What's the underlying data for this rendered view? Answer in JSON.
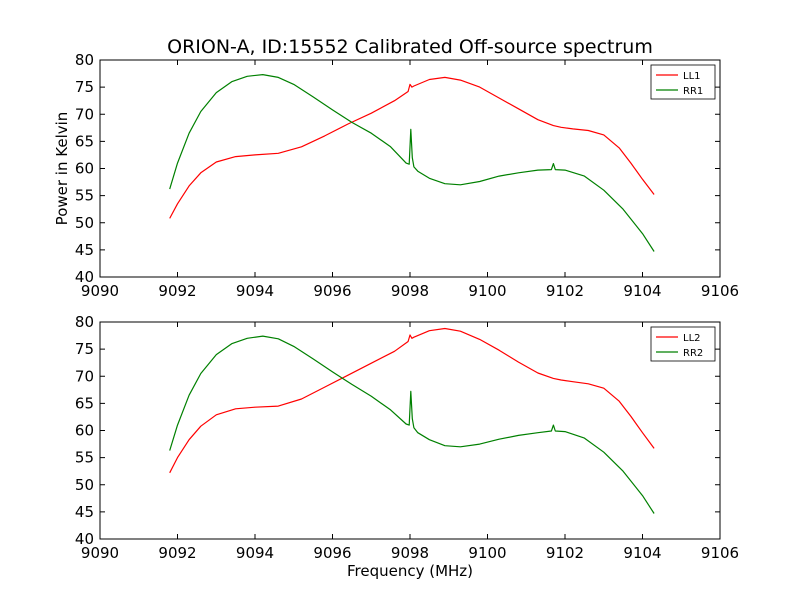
{
  "figure": {
    "title": "ORION-A, ID:15552 Calibrated Off-source spectrum"
  },
  "chart_data": [
    {
      "type": "line",
      "xlabel": "",
      "ylabel": "Power in Kelvin",
      "xlim": [
        9090,
        9106
      ],
      "ylim": [
        40,
        80
      ],
      "xticks": [
        9090,
        9092,
        9094,
        9096,
        9098,
        9100,
        9102,
        9104,
        9106
      ],
      "yticks": [
        40,
        45,
        50,
        55,
        60,
        65,
        70,
        75,
        80
      ],
      "grid": false,
      "legend_position": "top-right",
      "series": [
        {
          "name": "LL1",
          "color": "#ff0000",
          "x": [
            9091.8,
            9092.0,
            9092.3,
            9092.6,
            9093.0,
            9093.5,
            9094.0,
            9094.6,
            9095.2,
            9095.8,
            9096.4,
            9097.0,
            9097.6,
            9097.95,
            9098.0,
            9098.05,
            9098.1,
            9098.5,
            9098.9,
            9099.3,
            9099.8,
            9100.3,
            9100.8,
            9101.3,
            9101.7,
            9101.9,
            9102.2,
            9102.6,
            9103.0,
            9103.4,
            9103.7,
            9104.0,
            9104.3
          ],
          "y": [
            50.8,
            53.5,
            56.8,
            59.2,
            61.2,
            62.2,
            62.5,
            62.8,
            64.0,
            66.0,
            68.2,
            70.2,
            72.5,
            74.2,
            75.5,
            75.0,
            75.2,
            76.4,
            76.8,
            76.3,
            75.0,
            73.0,
            71.0,
            69.0,
            67.9,
            67.6,
            67.3,
            67.0,
            66.2,
            63.8,
            61.0,
            58.0,
            55.2
          ]
        },
        {
          "name": "RR1",
          "color": "#008000",
          "x": [
            9091.8,
            9092.0,
            9092.3,
            9092.6,
            9093.0,
            9093.4,
            9093.8,
            9094.2,
            9094.6,
            9095.0,
            9095.5,
            9096.0,
            9096.5,
            9097.0,
            9097.5,
            9097.9,
            9097.98,
            9098.02,
            9098.06,
            9098.1,
            9098.2,
            9098.5,
            9098.9,
            9099.3,
            9099.8,
            9100.3,
            9100.8,
            9101.3,
            9101.65,
            9101.7,
            9101.75,
            9102.0,
            9102.5,
            9103.0,
            9103.5,
            9104.0,
            9104.3
          ],
          "y": [
            56.2,
            61.0,
            66.5,
            70.5,
            74.0,
            76.0,
            77.0,
            77.3,
            76.8,
            75.5,
            73.2,
            70.8,
            68.5,
            66.5,
            64.0,
            61.0,
            60.8,
            67.2,
            62.0,
            60.3,
            59.5,
            58.2,
            57.2,
            57.0,
            57.6,
            58.6,
            59.2,
            59.7,
            59.8,
            60.9,
            59.8,
            59.7,
            58.6,
            56.0,
            52.5,
            48.0,
            44.7
          ]
        }
      ]
    },
    {
      "type": "line",
      "xlabel": "Frequency (MHz)",
      "ylabel": "",
      "xlim": [
        9090,
        9106
      ],
      "ylim": [
        40,
        80
      ],
      "xticks": [
        9090,
        9092,
        9094,
        9096,
        9098,
        9100,
        9102,
        9104,
        9106
      ],
      "yticks": [
        40,
        45,
        50,
        55,
        60,
        65,
        70,
        75,
        80
      ],
      "grid": false,
      "legend_position": "top-right",
      "series": [
        {
          "name": "LL2",
          "color": "#ff0000",
          "x": [
            9091.8,
            9092.0,
            9092.3,
            9092.6,
            9093.0,
            9093.5,
            9094.0,
            9094.6,
            9095.2,
            9095.8,
            9096.4,
            9097.0,
            9097.6,
            9097.95,
            9098.0,
            9098.05,
            9098.1,
            9098.5,
            9098.9,
            9099.3,
            9099.8,
            9100.3,
            9100.8,
            9101.3,
            9101.7,
            9101.9,
            9102.2,
            9102.6,
            9103.0,
            9103.4,
            9103.7,
            9104.0,
            9104.3
          ],
          "y": [
            52.2,
            55.0,
            58.3,
            60.8,
            62.9,
            64.0,
            64.3,
            64.5,
            65.8,
            68.0,
            70.2,
            72.4,
            74.6,
            76.4,
            77.6,
            77.0,
            77.2,
            78.4,
            78.8,
            78.3,
            76.8,
            74.8,
            72.6,
            70.6,
            69.6,
            69.3,
            69.0,
            68.6,
            67.8,
            65.4,
            62.6,
            59.6,
            56.7
          ]
        },
        {
          "name": "RR2",
          "color": "#008000",
          "x": [
            9091.8,
            9092.0,
            9092.3,
            9092.6,
            9093.0,
            9093.4,
            9093.8,
            9094.2,
            9094.6,
            9095.0,
            9095.5,
            9096.0,
            9096.5,
            9097.0,
            9097.5,
            9097.9,
            9097.98,
            9098.02,
            9098.06,
            9098.1,
            9098.2,
            9098.5,
            9098.9,
            9099.3,
            9099.8,
            9100.3,
            9100.8,
            9101.3,
            9101.65,
            9101.7,
            9101.75,
            9102.0,
            9102.5,
            9103.0,
            9103.5,
            9104.0,
            9104.3
          ],
          "y": [
            56.3,
            61.0,
            66.5,
            70.5,
            74.0,
            76.0,
            77.0,
            77.4,
            76.9,
            75.5,
            73.2,
            70.8,
            68.5,
            66.3,
            63.8,
            61.2,
            61.0,
            67.2,
            62.2,
            60.5,
            59.6,
            58.3,
            57.2,
            57.0,
            57.5,
            58.4,
            59.1,
            59.6,
            59.9,
            61.0,
            59.9,
            59.8,
            58.6,
            56.0,
            52.5,
            48.0,
            44.7
          ]
        }
      ]
    }
  ]
}
